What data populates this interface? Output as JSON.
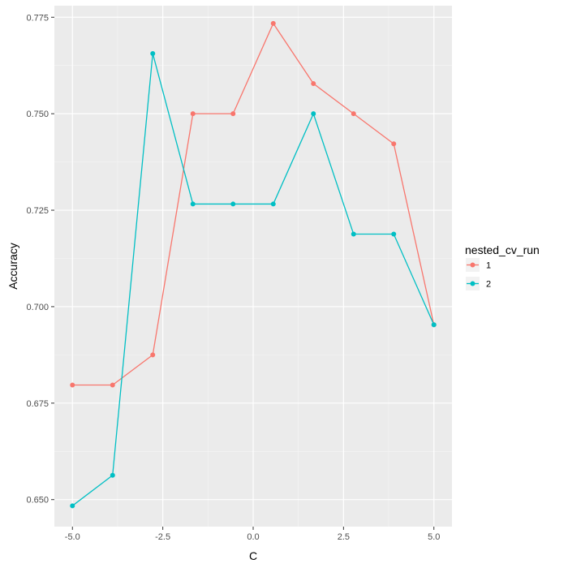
{
  "chart_data": {
    "type": "line",
    "xlabel": "C",
    "ylabel": "Accuracy",
    "xlim": [
      -5.5,
      5.5
    ],
    "ylim": [
      0.643,
      0.778
    ],
    "x_ticks": [
      -5.0,
      -2.5,
      0.0,
      2.5,
      5.0
    ],
    "x_tick_labels": [
      "-5.0",
      "-2.5",
      "0.0",
      "2.5",
      "5.0"
    ],
    "y_ticks": [
      0.65,
      0.675,
      0.7,
      0.725,
      0.75,
      0.775
    ],
    "y_tick_labels": [
      "0.650",
      "0.675",
      "0.700",
      "0.725",
      "0.750",
      "0.775"
    ],
    "grid": true,
    "legend": {
      "title": "nested_cv_run",
      "position": "right"
    },
    "x": [
      -5.0,
      -3.889,
      -2.778,
      -1.667,
      -0.556,
      0.556,
      1.667,
      2.778,
      3.889,
      5.0
    ],
    "series": [
      {
        "name": "1",
        "color": "#F8766D",
        "values": [
          0.6797,
          0.6797,
          0.6875,
          0.75,
          0.75,
          0.7734,
          0.7578,
          0.75,
          0.7422,
          0.6953
        ]
      },
      {
        "name": "2",
        "color": "#00BFC4",
        "values": [
          0.6484,
          0.6563,
          0.7656,
          0.7266,
          0.7266,
          0.7266,
          0.75,
          0.7188,
          0.7188,
          0.6953
        ]
      }
    ]
  }
}
